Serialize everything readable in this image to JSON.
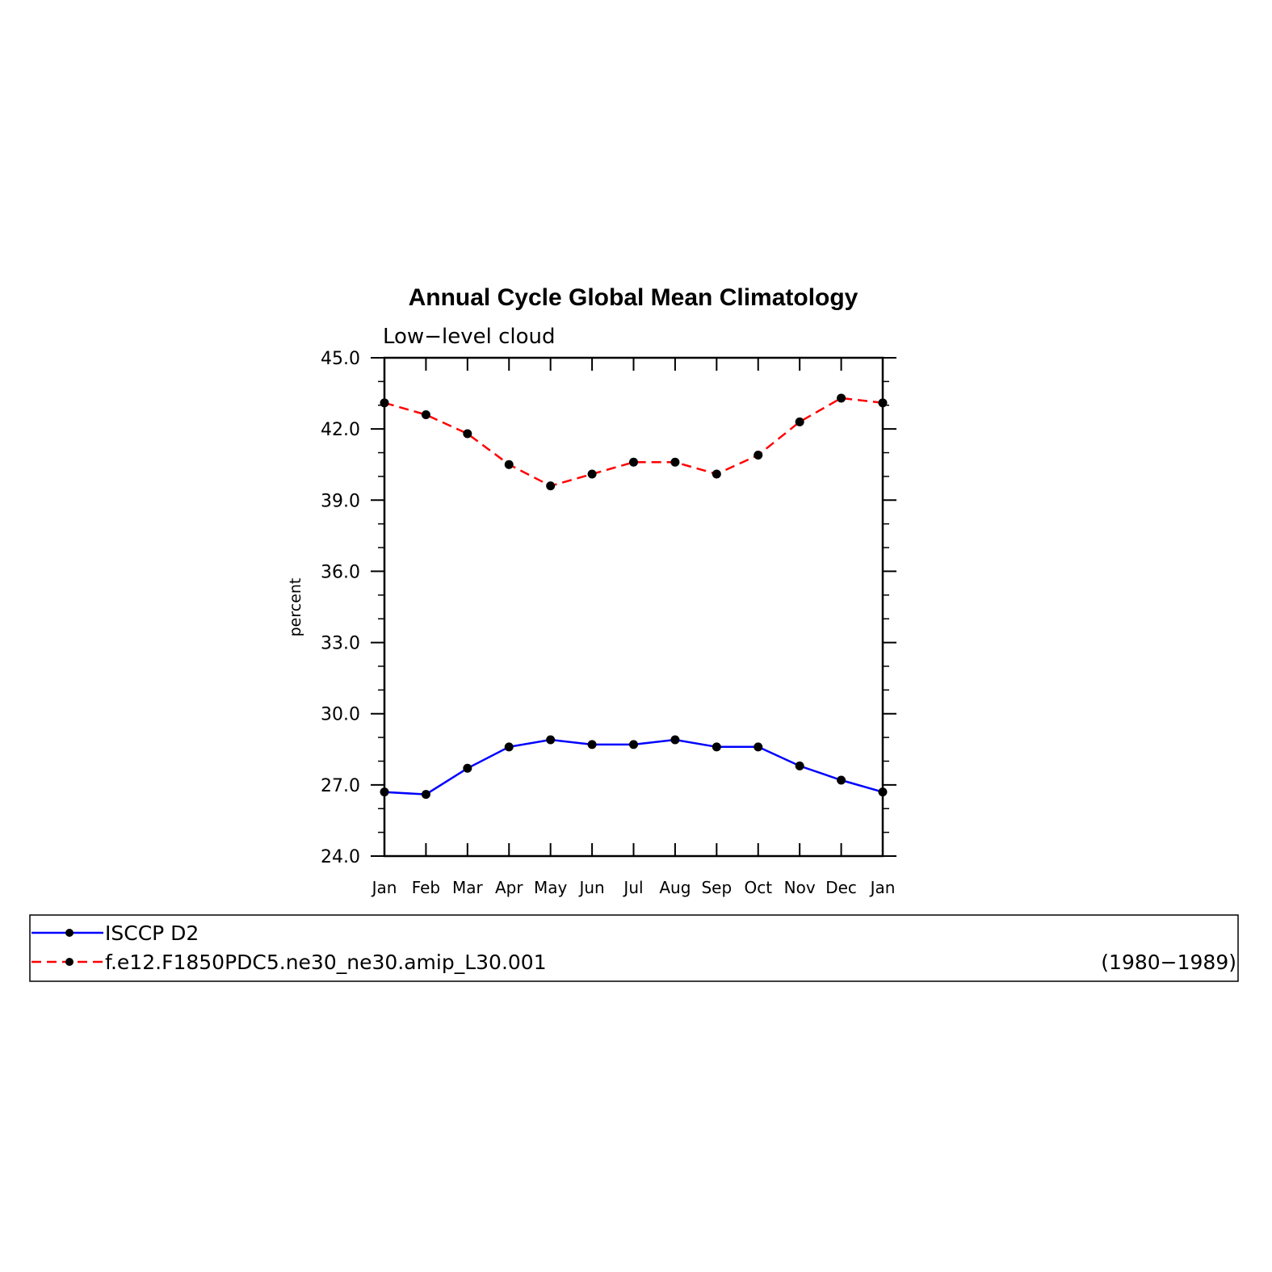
{
  "chart_data": {
    "type": "line",
    "title": "Annual Cycle Global Mean Climatology",
    "subtitle": "Low−level cloud",
    "ylabel": "percent",
    "xlabel": "",
    "ylim": [
      24.0,
      45.0
    ],
    "yticks": [
      "24.0",
      "27.0",
      "30.0",
      "33.0",
      "36.0",
      "39.0",
      "42.0",
      "45.0"
    ],
    "ytick_values": [
      24,
      27,
      30,
      33,
      36,
      39,
      42,
      45
    ],
    "categories": [
      "Jan",
      "Feb",
      "Mar",
      "Apr",
      "May",
      "Jun",
      "Jul",
      "Aug",
      "Sep",
      "Oct",
      "Nov",
      "Dec",
      "Jan"
    ],
    "grid": false,
    "series": [
      {
        "name": "ISCCP D2",
        "color": "#0000ff",
        "dash": "solid",
        "values": [
          26.7,
          26.6,
          27.7,
          28.6,
          28.9,
          28.7,
          28.7,
          28.9,
          28.6,
          28.6,
          27.8,
          27.2,
          26.7
        ]
      },
      {
        "name": "f.e12.F1850PDC5.ne30_ne30.amip_L30.001",
        "color": "#ff0000",
        "dash": "dashed",
        "values": [
          43.1,
          42.6,
          41.8,
          40.5,
          39.6,
          40.1,
          40.6,
          40.6,
          40.1,
          40.9,
          42.3,
          43.3,
          43.1
        ]
      }
    ],
    "marker_color": "#000000",
    "legend": {
      "placement": "bottom",
      "note": "(1980−1989)"
    }
  }
}
